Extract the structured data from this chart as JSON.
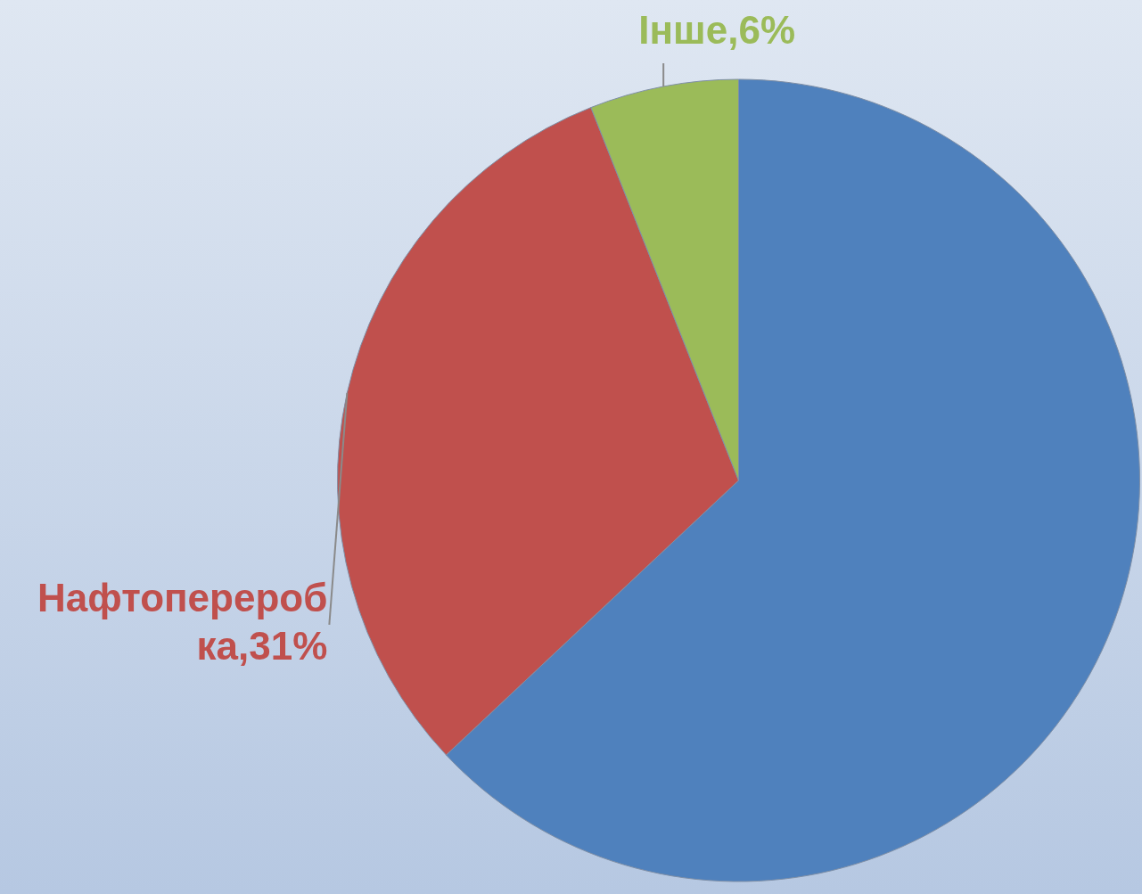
{
  "chart_data": {
    "type": "pie",
    "categories": [
      null,
      "Нафтопереробка",
      "Інше"
    ],
    "values": [
      63,
      31,
      6
    ],
    "colors": [
      "#4f81bd",
      "#c0504d",
      "#9bbb59"
    ],
    "value_labels": [
      null,
      "31%",
      "6%"
    ],
    "legend": false
  }
}
